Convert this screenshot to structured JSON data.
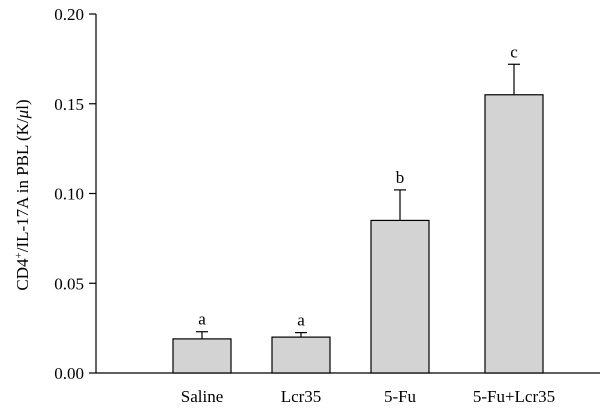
{
  "chart_data": {
    "type": "bar",
    "categories": [
      "Saline",
      "Lcr35",
      "5-Fu",
      "5-Fu+Lcr35"
    ],
    "values": [
      0.019,
      0.02,
      0.085,
      0.155
    ],
    "errors": [
      0.004,
      0.0025,
      0.017,
      0.017
    ],
    "significance_labels": [
      "a",
      "a",
      "b",
      "c"
    ],
    "ylim": [
      0.0,
      0.2
    ],
    "yticks": [
      0.0,
      0.05,
      0.1,
      0.15,
      0.2
    ],
    "ytick_labels": [
      "0.00",
      "0.05",
      "0.10",
      "0.15",
      "0.20"
    ],
    "ylabel": {
      "pre": "CD4",
      "sup": "+",
      "mid": "/IL-17A in PBL (K/",
      "mu": "μ",
      "post": "l)"
    },
    "xlabel": "",
    "bar_color": "#d3d3d3",
    "grid": false
  }
}
